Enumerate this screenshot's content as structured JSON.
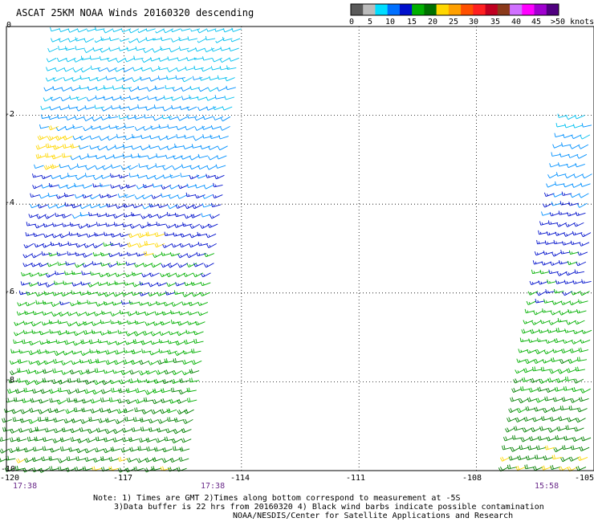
{
  "title": "ASCAT 25KM NOAA Winds 20160320 descending",
  "legend": {
    "colors": [
      "#5a5a5a",
      "#bbbbbb",
      "#00ddff",
      "#0070ff",
      "#0010cc",
      "#00b000",
      "#007000",
      "#ffd700",
      "#ffa000",
      "#ff5000",
      "#ff2020",
      "#c00020",
      "#8b3a1a",
      "#d070ff",
      "#ff00ff",
      "#a000d0",
      "#500080"
    ],
    "labels": [
      "0",
      "5",
      "10",
      "15",
      "20",
      "25",
      "30",
      "35",
      "40",
      "45",
      ">50 knots"
    ]
  },
  "chart_data": {
    "type": "scatter",
    "title": "ASCAT 25KM NOAA Winds 20160320 descending",
    "xlim": [
      -120,
      -105
    ],
    "ylim": [
      -10,
      0
    ],
    "x_ticks": [
      "-120",
      "-117",
      "-114",
      "-111",
      "-108",
      "-105"
    ],
    "y_ticks": [
      "0",
      "-2",
      "-4",
      "-6",
      "-8",
      "-10"
    ],
    "grid": true,
    "speed_color_scale_knots": [
      0,
      5,
      10,
      15,
      20,
      25,
      30,
      35,
      40,
      45,
      50
    ],
    "swaths": [
      {
        "pass_time": "17:38",
        "lon_range_south": [
          -120,
          -115.3
        ],
        "lon_range_north": [
          -118.6,
          -113.8
        ]
      },
      {
        "pass_time": "15:58",
        "lon_range_south": [
          -107.2,
          -105
        ],
        "lon_range_north": [
          -105.3,
          -105
        ]
      }
    ]
  },
  "times": [
    "17:38",
    "17:38",
    "15:58"
  ],
  "notes": {
    "line1": "Note: 1) Times are GMT 2)Times along bottom correspond to measurement at -5S",
    "line2": "3)Data buffer is 22 hrs from 20160320 4) Black wind barbs indicate possible contamination",
    "line3": "NOAA/NESDIS/Center for Satellite Applications and Research"
  }
}
